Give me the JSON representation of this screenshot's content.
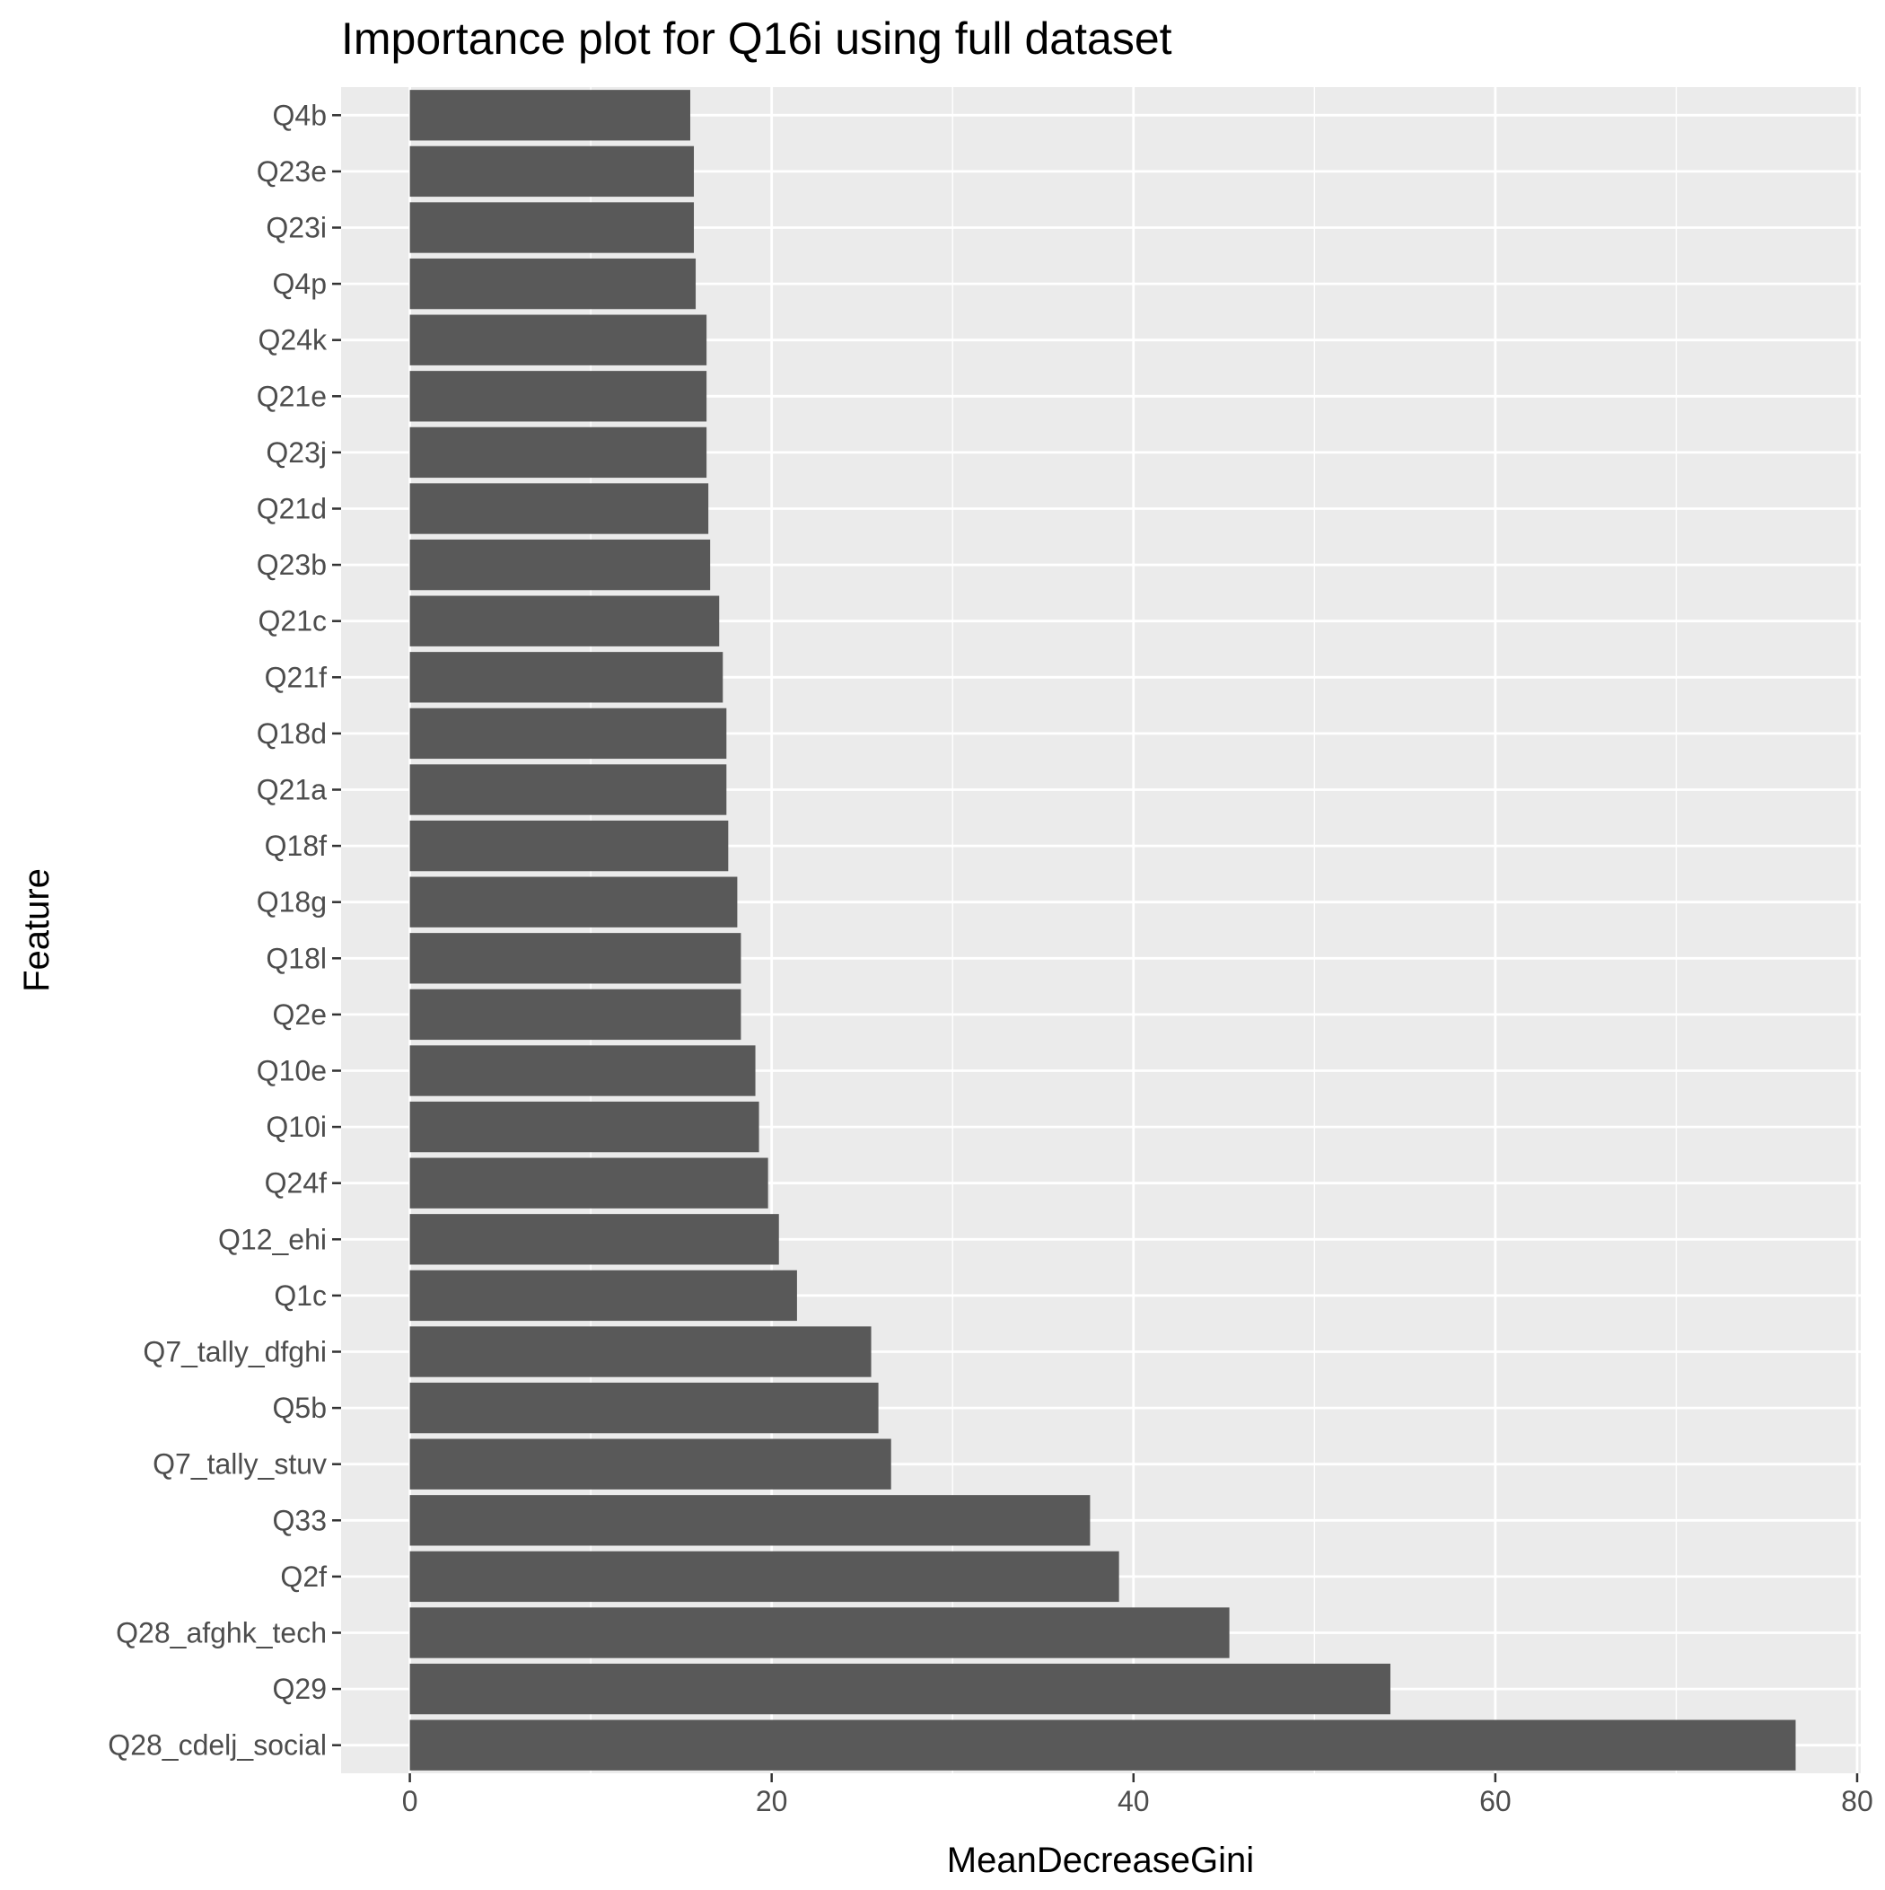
{
  "chart_data": {
    "type": "bar",
    "orientation": "horizontal",
    "title": "Importance plot for Q16i using full dataset",
    "xlabel": "MeanDecreaseGini",
    "ylabel": "Feature",
    "xlim": [
      -3.8,
      80.2
    ],
    "x_ticks": [
      "0",
      "20",
      "40",
      "60",
      "80"
    ],
    "x_tick_values": [
      0,
      20,
      40,
      60,
      80
    ],
    "grid": true,
    "legend": "none",
    "bar_color": "#595959",
    "panel_background": "#ebebeb",
    "categories": [
      "Q4b",
      "Q23e",
      "Q23i",
      "Q4p",
      "Q24k",
      "Q21e",
      "Q23j",
      "Q21d",
      "Q23b",
      "Q21c",
      "Q21f",
      "Q18d",
      "Q21a",
      "Q18f",
      "Q18g",
      "Q18l",
      "Q2e",
      "Q10e",
      "Q10i",
      "Q24f",
      "Q12_ehi",
      "Q1c",
      "Q7_tally_dfghi",
      "Q5b",
      "Q7_tally_stuv",
      "Q33",
      "Q2f",
      "Q28_afghk_tech",
      "Q29",
      "Q28_cdelj_social"
    ],
    "values": [
      15.5,
      15.7,
      15.7,
      15.8,
      16.4,
      16.4,
      16.4,
      16.5,
      16.6,
      17.1,
      17.3,
      17.5,
      17.5,
      17.6,
      18.1,
      18.3,
      18.3,
      19.1,
      19.3,
      19.8,
      20.4,
      21.4,
      25.5,
      25.9,
      26.6,
      37.6,
      39.2,
      45.3,
      54.2,
      76.6
    ]
  }
}
